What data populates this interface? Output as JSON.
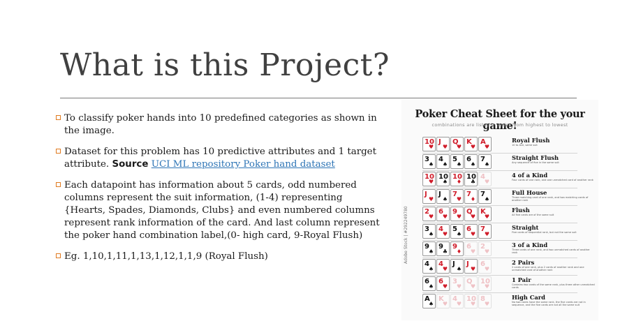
{
  "slide": {
    "title": "What is this Project?",
    "bullets": {
      "b1": "To classify poker hands into 10 predefined categories as shown in the image.",
      "b2_text": "Dataset for this problem has 10 predictive attributes and 1 target attribute. ",
      "b2_bold": "Source",
      "b2_link": "UCI ML repository Poker hand dataset",
      "b3": "Each datapoint has information about 5 cards, odd numbered columns represent the suit information, (1-4) representing {Hearts, Spades, Diamonds, Clubs} and even numbered columns represent rank information of the card. And last column represent the poker hand combination label,(0- high card, 9-Royal Flush)",
      "b4": "Eg. 1,10,1,11,1,13,1,12,1,1,9 (Royal Flush)"
    }
  },
  "cheat_sheet": {
    "title": "Poker Cheat Sheet for the your game!",
    "subtitle": "combinations are listed in order from highest to lowest",
    "stock_label": "Adobe Stock | #292249780",
    "hands": [
      {
        "name": "Royal Flush",
        "desc": "10 to Ace, same suit",
        "cards": [
          {
            "r": "10",
            "s": "♥",
            "c": "red"
          },
          {
            "r": "J",
            "s": "♥",
            "c": "red"
          },
          {
            "r": "Q",
            "s": "♥",
            "c": "red"
          },
          {
            "r": "K",
            "s": "♥",
            "c": "red"
          },
          {
            "r": "A",
            "s": "♥",
            "c": "red"
          }
        ]
      },
      {
        "name": "Straight Flush",
        "desc": "Any sequence of five in the same suit",
        "cards": [
          {
            "r": "3",
            "s": "♠",
            "c": "blk"
          },
          {
            "r": "4",
            "s": "♠",
            "c": "blk"
          },
          {
            "r": "5",
            "s": "♠",
            "c": "blk"
          },
          {
            "r": "6",
            "s": "♠",
            "c": "blk"
          },
          {
            "r": "7",
            "s": "♠",
            "c": "blk"
          }
        ]
      },
      {
        "name": "4 of a Kind",
        "desc": "Four cards of one rank, and one unmatched card of another rank",
        "cards": [
          {
            "r": "10",
            "s": "♥",
            "c": "red"
          },
          {
            "r": "10",
            "s": "♠",
            "c": "blk"
          },
          {
            "r": "10",
            "s": "♦",
            "c": "red"
          },
          {
            "r": "10",
            "s": "♣",
            "c": "blk"
          },
          {
            "r": "4",
            "s": "♥",
            "c": "red",
            "f": true
          }
        ]
      },
      {
        "name": "Full House",
        "desc": "Three matching card of one rank, and two matching cards of another rank",
        "cards": [
          {
            "r": "J",
            "s": "♥",
            "c": "red"
          },
          {
            "r": "J",
            "s": "♠",
            "c": "blk"
          },
          {
            "r": "7",
            "s": "♥",
            "c": "red"
          },
          {
            "r": "7",
            "s": "♦",
            "c": "red"
          },
          {
            "r": "7",
            "s": "♠",
            "c": "blk"
          }
        ]
      },
      {
        "name": "Flush",
        "desc": "All five cards are of the same suit",
        "cards": [
          {
            "r": "2",
            "s": "♥",
            "c": "red"
          },
          {
            "r": "6",
            "s": "♥",
            "c": "red"
          },
          {
            "r": "9",
            "s": "♥",
            "c": "red"
          },
          {
            "r": "Q",
            "s": "♥",
            "c": "red"
          },
          {
            "r": "K",
            "s": "♥",
            "c": "red"
          }
        ]
      },
      {
        "name": "Straight",
        "desc": "Five cards of sequential rank, but not the same suit",
        "cards": [
          {
            "r": "3",
            "s": "♠",
            "c": "blk"
          },
          {
            "r": "4",
            "s": "♥",
            "c": "red"
          },
          {
            "r": "5",
            "s": "♠",
            "c": "blk"
          },
          {
            "r": "6",
            "s": "♥",
            "c": "red"
          },
          {
            "r": "7",
            "s": "♥",
            "c": "red"
          }
        ]
      },
      {
        "name": "3 of a Kind",
        "desc": "Three cards of one rank, and two unmatched cards of another rank",
        "cards": [
          {
            "r": "9",
            "s": "♠",
            "c": "blk"
          },
          {
            "r": "9",
            "s": "♣",
            "c": "blk"
          },
          {
            "r": "9",
            "s": "♦",
            "c": "red"
          },
          {
            "r": "6",
            "s": "♥",
            "c": "red",
            "f": true
          },
          {
            "r": "2",
            "s": "♥",
            "c": "red",
            "f": true
          }
        ]
      },
      {
        "name": "2 Pairs",
        "desc": "2 cards of one rank, plus 2 cards of another rank and one unmatched card of another rank",
        "cards": [
          {
            "r": "4",
            "s": "♠",
            "c": "blk"
          },
          {
            "r": "4",
            "s": "♥",
            "c": "red"
          },
          {
            "r": "J",
            "s": "♠",
            "c": "blk"
          },
          {
            "r": "J",
            "s": "♥",
            "c": "red"
          },
          {
            "r": "6",
            "s": "♥",
            "c": "red",
            "f": true
          }
        ]
      },
      {
        "name": "1 Pair",
        "desc": "Contains two cards of the same rank, plus three other unmatched cards",
        "cards": [
          {
            "r": "6",
            "s": "♠",
            "c": "blk"
          },
          {
            "r": "6",
            "s": "♥",
            "c": "red"
          },
          {
            "r": "3",
            "s": "♥",
            "c": "red",
            "f": true
          },
          {
            "r": "Q",
            "s": "♥",
            "c": "red",
            "f": true
          },
          {
            "r": "10",
            "s": "♥",
            "c": "red",
            "f": true
          }
        ]
      },
      {
        "name": "High Card",
        "desc": "No two cards have the same rank, the five cards are not in sequence, and the five cards are not all the same suit",
        "cards": [
          {
            "r": "A",
            "s": "♠",
            "c": "blk"
          },
          {
            "r": "K",
            "s": "♥",
            "c": "red",
            "f": true
          },
          {
            "r": "4",
            "s": "♥",
            "c": "red",
            "f": true
          },
          {
            "r": "10",
            "s": "♥",
            "c": "red",
            "f": true
          },
          {
            "r": "8",
            "s": "♥",
            "c": "red",
            "f": true
          }
        ]
      }
    ]
  },
  "colors": {
    "bullet_mark": "#e07a1f",
    "link": "#2e75b6",
    "title": "#404040",
    "card_red": "#d01c2a"
  }
}
